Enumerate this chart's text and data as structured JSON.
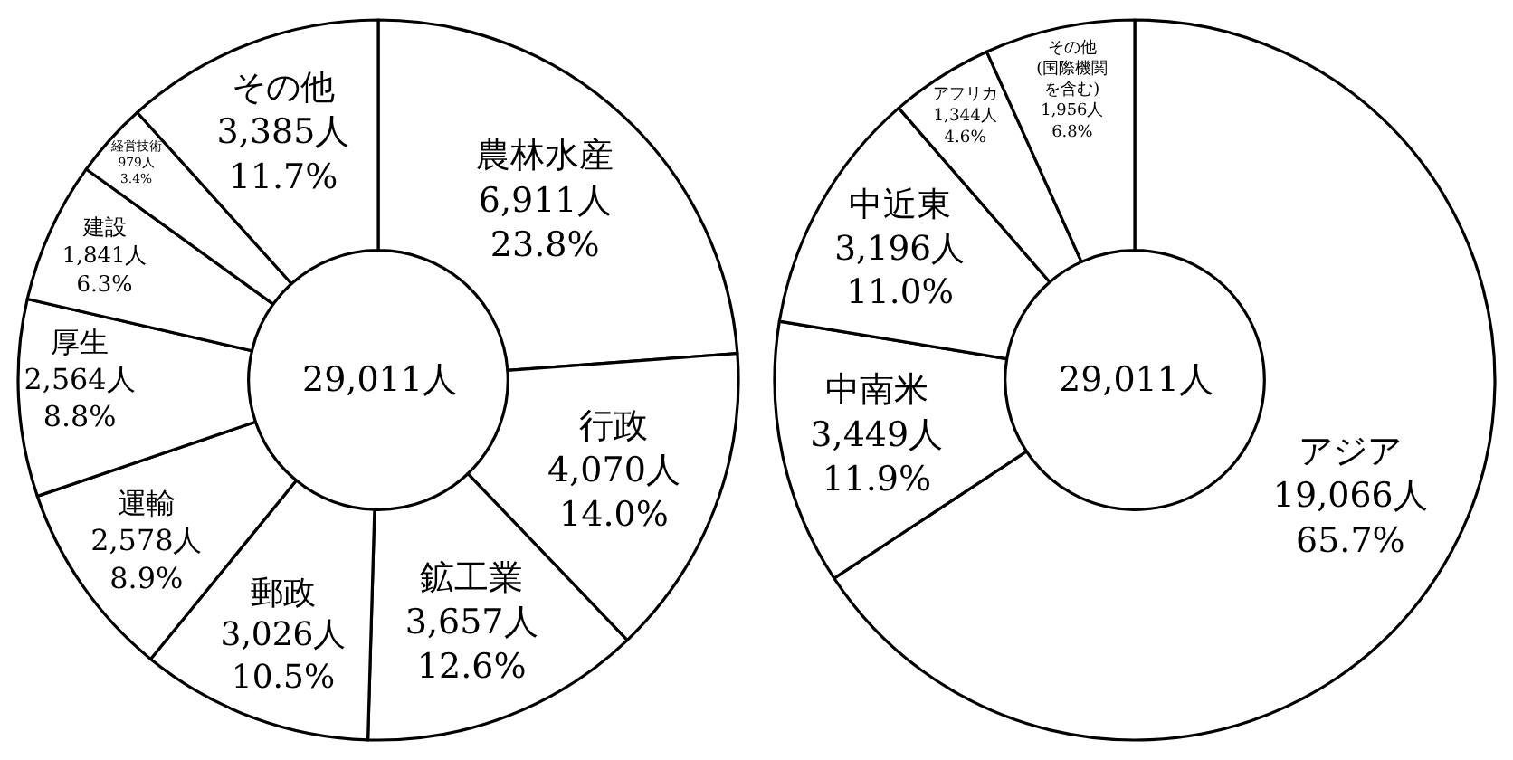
{
  "chart_data": [
    {
      "type": "donut",
      "categories": [
        "農林水産",
        "行政",
        "鉱工業",
        "郵政",
        "運輸",
        "厚生",
        "建設",
        "経営技術",
        "その他"
      ],
      "values": [
        6911,
        4070,
        3657,
        3026,
        2578,
        2564,
        1841,
        979,
        3385
      ],
      "colors": [
        "#ffffff",
        "#ffffff",
        "#ffffff",
        "#ffffff",
        "#ffffff",
        "#ffffff",
        "#ffffff",
        "#ffffff",
        "#ffffff"
      ],
      "value_labels": [
        "6,911人\n23.8%",
        "4,070人\n14.0%",
        "3,657人\n12.6%",
        "3,026人\n10.5%",
        "2,578人\n8.9%",
        "2,564人\n8.8%",
        "1,841人\n6.3%",
        "979人\n3.4%",
        "3,385人\n11.7%"
      ],
      "annotations": [
        "29,011人"
      ]
    },
    {
      "type": "donut",
      "categories": [
        "アジア",
        "中南米",
        "中近東",
        "アフリカ",
        "その他(国際機関を含む)"
      ],
      "values": [
        19066,
        3449,
        3196,
        1344,
        1956
      ],
      "colors": [
        "#ffffff",
        "#ffffff",
        "#ffffff",
        "#ffffff",
        "#ffffff"
      ],
      "value_labels": [
        "19,066人\n65.7%",
        "3,449人\n11.9%",
        "3,196人\n11.0%",
        "1,344人\n4.6%",
        "1,956人\n6.8%"
      ],
      "annotations": [
        "29,011人"
      ]
    }
  ]
}
